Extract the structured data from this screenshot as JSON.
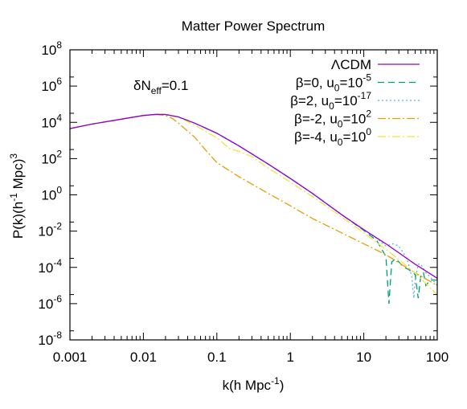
{
  "chart_data": {
    "type": "line",
    "title": "Matter Power Spectrum",
    "xlabel": {
      "base": "k(h Mpc",
      "sup": "-1",
      "tail": ")"
    },
    "ylabel": {
      "base": "P(k)(h",
      "sup1": "-1",
      "mid": " Mpc)",
      "sup2": "3"
    },
    "x_scale": "log",
    "y_scale": "log",
    "xlim": [
      0.001,
      100
    ],
    "ylim": [
      1e-08,
      100000000.0
    ],
    "x_ticks": [
      {
        "value": 0.001,
        "label": "0.001"
      },
      {
        "value": 0.01,
        "label": "0.01"
      },
      {
        "value": 0.1,
        "label": "0.1"
      },
      {
        "value": 1,
        "label": "1"
      },
      {
        "value": 10,
        "label": "10"
      },
      {
        "value": 100,
        "label": "100"
      }
    ],
    "y_ticks": [
      {
        "value": 1e-08,
        "base": "10",
        "exp": "-8"
      },
      {
        "value": 1e-06,
        "base": "10",
        "exp": "-6"
      },
      {
        "value": 0.0001,
        "base": "10",
        "exp": "-4"
      },
      {
        "value": 0.01,
        "base": "10",
        "exp": "-2"
      },
      {
        "value": 1,
        "base": "10",
        "exp": "0"
      },
      {
        "value": 100.0,
        "base": "10",
        "exp": "2"
      },
      {
        "value": 10000.0,
        "base": "10",
        "exp": "4"
      },
      {
        "value": 1000000.0,
        "base": "10",
        "exp": "6"
      },
      {
        "value": 100000000.0,
        "base": "10",
        "exp": "8"
      }
    ],
    "annotation": {
      "pre": "δN",
      "sub": "eff",
      "post": "=0.1"
    },
    "grid": false,
    "legend_position": "top-right",
    "series": [
      {
        "legend": {
          "main": "ΛCDM"
        },
        "color": "#9400d3",
        "dash": "solid",
        "x": [
          0.001,
          0.002,
          0.005,
          0.01,
          0.015,
          0.02,
          0.03,
          0.05,
          0.1,
          0.2,
          0.5,
          1,
          2,
          5,
          10,
          20,
          50,
          100
        ],
        "y": [
          4500,
          8000,
          15000,
          24000,
          27500,
          27000,
          20000,
          9000,
          2500,
          500,
          50,
          8,
          1.2,
          0.08,
          0.012,
          0.002,
          0.00015,
          2.5e-05
        ]
      },
      {
        "legend": {
          "main": "β=0, u",
          "sub": "0",
          "mid": "=10",
          "sup": "-5"
        },
        "color": "#009e73",
        "dash": "8,5",
        "x": [
          0.001,
          0.002,
          0.005,
          0.01,
          0.015,
          0.02,
          0.03,
          0.05,
          0.1,
          0.2,
          0.5,
          1,
          2,
          5,
          10,
          15,
          20,
          22,
          24,
          27,
          30,
          35,
          40,
          50,
          55,
          60,
          65,
          70,
          80,
          100
        ],
        "y": [
          4500,
          8000,
          15000,
          24000,
          27500,
          27000,
          20000,
          9000,
          2500,
          500,
          50,
          8,
          1.2,
          0.08,
          0.011,
          0.003,
          0.0004,
          1e-06,
          0.0002,
          0.0003,
          0.0002,
          0.0001,
          8e-05,
          4e-05,
          2e-06,
          4e-05,
          5e-05,
          1e-05,
          2e-05,
          2e-05
        ]
      },
      {
        "legend": {
          "main": "β=2, u",
          "sub": "0",
          "mid": "=10",
          "sup": "-17"
        },
        "color": "#56b4e9",
        "dash": "2,3",
        "x": [
          0.001,
          0.002,
          0.005,
          0.01,
          0.015,
          0.02,
          0.03,
          0.05,
          0.1,
          0.2,
          0.5,
          1,
          2,
          5,
          10,
          15,
          20,
          25,
          30,
          35,
          40,
          45,
          48,
          50,
          55,
          60,
          70,
          80,
          100
        ],
        "y": [
          4500,
          8000,
          15000,
          24000,
          27500,
          27000,
          20000,
          9000,
          2500,
          500,
          50,
          8,
          1.2,
          0.08,
          0.012,
          0.004,
          0.0015,
          0.002,
          0.0015,
          0.0006,
          0.0002,
          3e-05,
          2e-06,
          2e-05,
          0.00015,
          0.00015,
          5e-05,
          3e-05,
          1e-05
        ]
      },
      {
        "legend": {
          "main": "β=-2, u",
          "sub": "0",
          "mid": "=10",
          "sup": "2"
        },
        "color": "#e69f00",
        "dash": "10,3,2,3",
        "x": [
          0.001,
          0.002,
          0.005,
          0.01,
          0.015,
          0.02,
          0.025,
          0.03,
          0.05,
          0.07,
          0.1,
          0.2,
          0.5,
          1,
          2,
          5,
          10,
          20,
          50,
          100
        ],
        "y": [
          4500,
          8000,
          15000,
          24000,
          27000,
          24000,
          16000,
          9000,
          1500,
          300,
          60,
          10,
          1.2,
          0.25,
          0.05,
          0.008,
          0.002,
          0.0005,
          5e-05,
          1e-05
        ]
      },
      {
        "legend": {
          "main": "β=-4, u",
          "sub": "0",
          "mid": "=10",
          "sup": "0"
        },
        "color": "#f0e442",
        "dash": "10,3,2,3",
        "x": [
          0.001,
          0.002,
          0.005,
          0.01,
          0.015,
          0.02,
          0.03,
          0.05,
          0.1,
          0.15,
          0.2,
          0.3,
          0.5,
          1,
          2,
          5,
          10,
          20,
          50,
          100
        ],
        "y": [
          4500,
          8000,
          15000,
          24000,
          27500,
          27000,
          19000,
          7000,
          1400,
          350,
          250,
          130,
          30,
          5,
          0.8,
          0.06,
          0.008,
          0.001,
          5e-05,
          3e-06
        ]
      }
    ]
  }
}
